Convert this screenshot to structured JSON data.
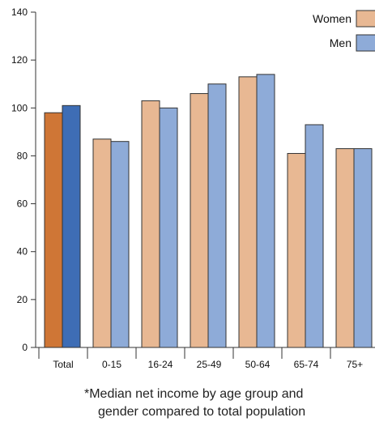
{
  "chart_data": {
    "type": "bar",
    "categories": [
      "Total",
      "0-15",
      "16-24",
      "25-49",
      "50-64",
      "65-74",
      "75+"
    ],
    "series": [
      {
        "name": "Women",
        "values": [
          98,
          87,
          103,
          106,
          113,
          81,
          83
        ]
      },
      {
        "name": "Men",
        "values": [
          101,
          86,
          100,
          110,
          114,
          93,
          83
        ]
      }
    ],
    "ylim": [
      0,
      140
    ],
    "yticks": [
      0,
      20,
      40,
      60,
      80,
      100,
      120,
      140
    ],
    "colors": {
      "women": "#e8b893",
      "men": "#8eabd8",
      "total_women": "#cf7636",
      "total_men": "#3e6db5",
      "outline": "#333333"
    },
    "legend": {
      "position": "top-right"
    },
    "grid": false
  },
  "footnote": {
    "line1": "*Median net income by age group and",
    "line2": "gender compared to total population"
  }
}
